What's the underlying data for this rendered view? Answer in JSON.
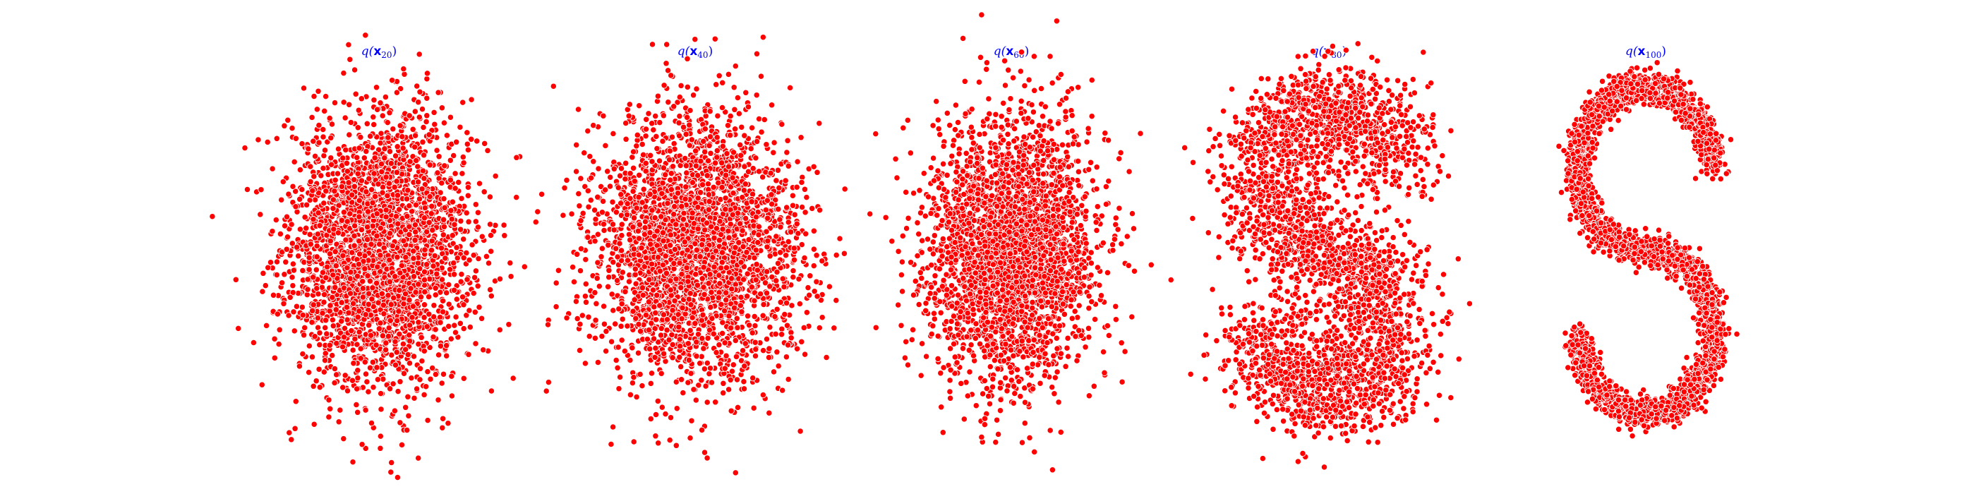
{
  "figure": {
    "point_color": "#ff0000",
    "point_edge_color": "#ffffff",
    "title_color": "#0000ff"
  },
  "chart_data": [
    {
      "type": "scatter",
      "title": {
        "prefix": "q(",
        "var": "x",
        "sub": "20",
        "suffix": ")"
      },
      "axes_visible": false,
      "grid": false,
      "shape": "gaussian",
      "n_points": 3000,
      "xlim": [
        -2.2,
        2.2
      ],
      "ylim": [
        -3.0,
        3.0
      ],
      "spread": [
        0.7,
        1.0
      ]
    },
    {
      "type": "scatter",
      "title": {
        "prefix": "q(",
        "var": "x",
        "sub": "40",
        "suffix": ")"
      },
      "axes_visible": false,
      "grid": false,
      "shape": "gaussian",
      "n_points": 3000,
      "xlim": [
        -2.2,
        2.2
      ],
      "ylim": [
        -3.0,
        3.0
      ],
      "spread": [
        0.8,
        1.0
      ]
    },
    {
      "type": "scatter",
      "title": {
        "prefix": "q(",
        "var": "x",
        "sub": "60",
        "suffix": ")"
      },
      "axes_visible": false,
      "grid": false,
      "shape": "gaussian",
      "n_points": 3000,
      "xlim": [
        -2.2,
        2.2
      ],
      "ylim": [
        -3.0,
        3.0
      ],
      "spread": [
        0.65,
        1.0
      ]
    },
    {
      "type": "scatter",
      "title": {
        "prefix": "q(",
        "var": "x",
        "sub": "80",
        "suffix": ")"
      },
      "axes_visible": false,
      "grid": false,
      "shape": "blurred-s",
      "n_points": 3000,
      "xlim": [
        -2.2,
        2.2
      ],
      "ylim": [
        -3.0,
        3.0
      ]
    },
    {
      "type": "scatter",
      "title": {
        "prefix": "q(",
        "var": "x",
        "sub": "100",
        "suffix": ")"
      },
      "axes_visible": false,
      "grid": false,
      "shape": "s-curve",
      "n_points": 3000,
      "xlim": [
        -2.2,
        2.2
      ],
      "ylim": [
        -3.0,
        3.0
      ]
    }
  ]
}
